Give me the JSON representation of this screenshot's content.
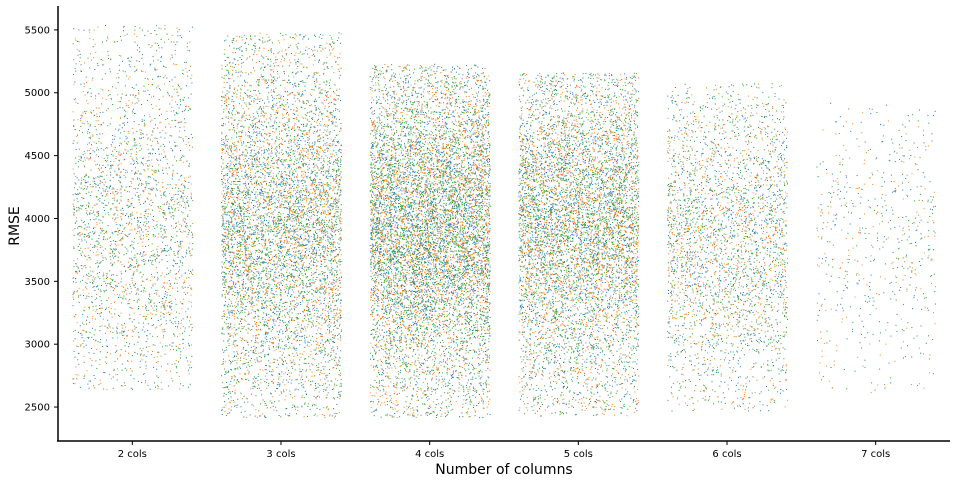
{
  "chart_data": {
    "type": "scatter",
    "title": "",
    "xlabel": "Number of columns",
    "ylabel": "RMSE",
    "categories": [
      "2 cols",
      "3 cols",
      "4 cols",
      "5 cols",
      "6 cols",
      "7 cols"
    ],
    "yticks": [
      2500,
      3000,
      3500,
      4000,
      4500,
      5000,
      5500
    ],
    "ylim": [
      2230,
      5690
    ],
    "grid": false,
    "legend": "none",
    "jitter": "strip plot with horizontal jitter per category",
    "series_colors": [
      "#1f77b4",
      "#ff7f0e",
      "#2ca02c"
    ],
    "groups": [
      {
        "category": "2 cols",
        "approx_points": 2600,
        "min": 2640,
        "max": 5540,
        "center": 3950,
        "spread": 650
      },
      {
        "category": "3 cols",
        "approx_points": 6500,
        "min": 2420,
        "max": 5480,
        "center": 3950,
        "spread": 600
      },
      {
        "category": "4 cols",
        "approx_points": 9000,
        "min": 2420,
        "max": 5230,
        "center": 3950,
        "spread": 560
      },
      {
        "category": "5 cols",
        "approx_points": 7000,
        "min": 2430,
        "max": 5160,
        "center": 3950,
        "spread": 560
      },
      {
        "category": "6 cols",
        "approx_points": 3200,
        "min": 2470,
        "max": 5080,
        "center": 3850,
        "spread": 560
      },
      {
        "category": "7 cols",
        "approx_points": 600,
        "min": 2620,
        "max": 4920,
        "center": 3800,
        "spread": 580
      }
    ]
  }
}
